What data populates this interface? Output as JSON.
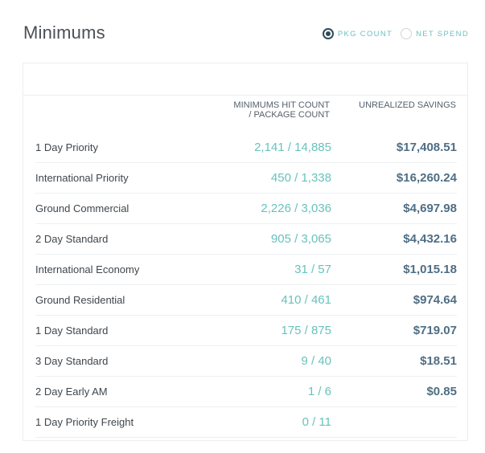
{
  "header": {
    "title": "Minimums"
  },
  "toggle": {
    "options": [
      {
        "label": "PKG COUNT",
        "selected": true
      },
      {
        "label": "NET SPEND",
        "selected": false
      }
    ]
  },
  "table": {
    "columns": {
      "hit_line1": "MINIMUMS HIT COUNT",
      "hit_line2": "/ PACKAGE COUNT",
      "savings": "UNREALIZED SAVINGS"
    },
    "rows": [
      {
        "service": "1 Day Priority",
        "hit": "2,141 / 14,885",
        "savings": "$17,408.51"
      },
      {
        "service": "International Priority",
        "hit": "450 / 1,338",
        "savings": "$16,260.24"
      },
      {
        "service": "Ground Commercial",
        "hit": "2,226 / 3,036",
        "savings": "$4,697.98"
      },
      {
        "service": "2 Day Standard",
        "hit": "905 / 3,065",
        "savings": "$4,432.16"
      },
      {
        "service": "International Economy",
        "hit": "31 / 57",
        "savings": "$1,015.18"
      },
      {
        "service": "Ground Residential",
        "hit": "410 / 461",
        "savings": "$974.64"
      },
      {
        "service": "1 Day Standard",
        "hit": "175 / 875",
        "savings": "$719.07"
      },
      {
        "service": "3 Day Standard",
        "hit": "9 / 40",
        "savings": "$18.51"
      },
      {
        "service": "2 Day Early AM",
        "hit": "1 / 6",
        "savings": "$0.85"
      },
      {
        "service": "1 Day Priority Freight",
        "hit": "0 / 11",
        "savings": ""
      }
    ]
  },
  "colors": {
    "accent_teal": "#68c2bd",
    "savings_blue": "#4f6e84",
    "radio_dark": "#2f4a5a"
  }
}
